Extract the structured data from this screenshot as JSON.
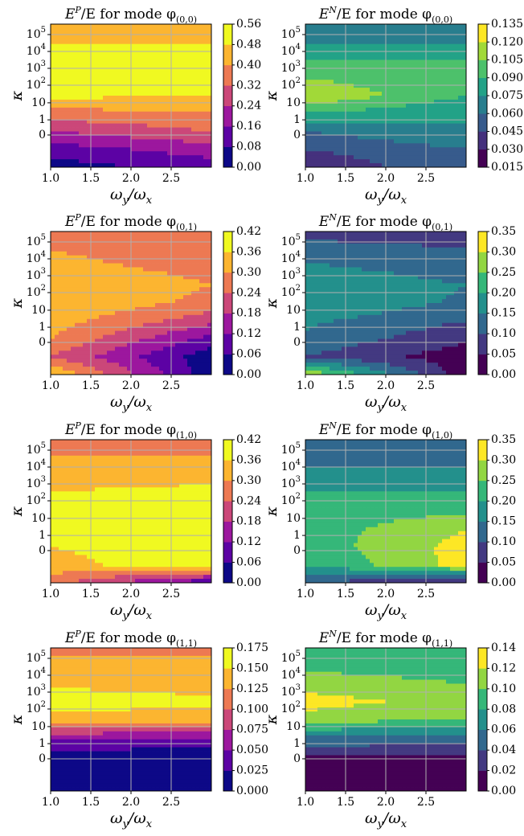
{
  "chart_data": [
    {
      "type": "heatmap",
      "title": "E^P/E for mode φ_(0,0)",
      "title_parts": {
        "quantity": "E",
        "superscript": "P",
        "middle": "/E for mode φ",
        "subscript": "(0,0)"
      },
      "xlabel": "ω_y/ω_x",
      "ylabel": "κ",
      "x_ticks": [
        "1.0",
        "1.5",
        "2.0",
        "2.5"
      ],
      "x_tick_values": [
        1.0,
        1.5,
        2.0,
        2.5
      ],
      "xlim": [
        1.0,
        3.0
      ],
      "y_ticks": [
        "0",
        "1",
        "10",
        "10^2",
        "10^3",
        "10^4",
        "10^5"
      ],
      "colormap": "plasma",
      "colorbar_ticks": [
        "0.00",
        "0.08",
        "0.16",
        "0.24",
        "0.32",
        "0.40",
        "0.48",
        "0.56"
      ],
      "colorbar_range": [
        0.0,
        0.56
      ],
      "grid": true,
      "z_profile_at_x1": [
        0.48,
        0.48,
        0.52,
        0.56,
        0.5,
        0.36,
        0.24,
        0.12,
        0.04
      ],
      "z_profile_at_x3": [
        0.48,
        0.48,
        0.48,
        0.52,
        0.48,
        0.4,
        0.32,
        0.2,
        0.12
      ]
    },
    {
      "type": "heatmap",
      "title": "E^N/E for mode φ_(0,0)",
      "title_parts": {
        "quantity": "E",
        "superscript": "N",
        "middle": "/E for mode φ",
        "subscript": "(0,0)"
      },
      "xlabel": "ω_y/ω_x",
      "ylabel": "κ",
      "x_ticks": [
        "1.0",
        "1.5",
        "2.0",
        "2.5"
      ],
      "x_tick_values": [
        1.0,
        1.5,
        2.0,
        2.5
      ],
      "xlim": [
        1.0,
        3.0
      ],
      "y_ticks": [
        "0",
        "1",
        "10",
        "10^2",
        "10^3",
        "10^4",
        "10^5"
      ],
      "colormap": "viridis",
      "colorbar_ticks": [
        "0.015",
        "0.030",
        "0.045",
        "0.060",
        "0.075",
        "0.090",
        "0.105",
        "0.120",
        "0.135"
      ],
      "colorbar_range": [
        0.015,
        0.135
      ],
      "grid": true,
      "z_profile_at_x1": [
        0.06,
        0.075,
        0.09,
        0.105,
        0.12,
        0.09,
        0.06,
        0.045,
        0.03
      ],
      "z_profile_at_x3": [
        0.075,
        0.075,
        0.09,
        0.09,
        0.09,
        0.075,
        0.075,
        0.06,
        0.06
      ]
    },
    {
      "type": "heatmap",
      "title": "E^P/E for mode φ_(0,1)",
      "title_parts": {
        "quantity": "E",
        "superscript": "P",
        "middle": "/E for mode φ",
        "subscript": "(0,1)"
      },
      "xlabel": "ω_y/ω_x",
      "ylabel": "κ",
      "x_ticks": [
        "1.0",
        "1.5",
        "2.0",
        "2.5"
      ],
      "x_tick_values": [
        1.0,
        1.5,
        2.0,
        2.5
      ],
      "xlim": [
        1.0,
        3.0
      ],
      "y_ticks": [
        "0",
        "1",
        "10",
        "10^2",
        "10^3",
        "10^4",
        "10^5"
      ],
      "colormap": "plasma",
      "colorbar_ticks": [
        "0.00",
        "0.06",
        "0.12",
        "0.18",
        "0.24",
        "0.30",
        "0.36",
        "0.42"
      ],
      "colorbar_range": [
        0.0,
        0.42
      ],
      "grid": true,
      "z_profile_at_x1": [
        0.24,
        0.3,
        0.32,
        0.36,
        0.36,
        0.33,
        0.3,
        0.24,
        0.36
      ],
      "z_profile_at_x3": [
        0.24,
        0.26,
        0.28,
        0.3,
        0.28,
        0.2,
        0.1,
        0.02,
        0.02
      ]
    },
    {
      "type": "heatmap",
      "title": "E^N/E for mode φ_(0,1)",
      "title_parts": {
        "quantity": "E",
        "superscript": "N",
        "middle": "/E for mode φ",
        "subscript": "(0,1)"
      },
      "xlabel": "ω_y/ω_x",
      "ylabel": "κ",
      "x_ticks": [
        "1.0",
        "1.5",
        "2.0",
        "2.5"
      ],
      "x_tick_values": [
        1.0,
        1.5,
        2.0,
        2.5
      ],
      "xlim": [
        1.0,
        3.0
      ],
      "y_ticks": [
        "0",
        "1",
        "10",
        "10^2",
        "10^3",
        "10^4",
        "10^5"
      ],
      "colormap": "viridis",
      "colorbar_ticks": [
        "0.00",
        "0.05",
        "0.10",
        "0.15",
        "0.20",
        "0.25",
        "0.30",
        "0.35"
      ],
      "colorbar_range": [
        0.0,
        0.35
      ],
      "grid": true,
      "z_profile_at_x1": [
        0.08,
        0.12,
        0.16,
        0.2,
        0.2,
        0.16,
        0.14,
        0.1,
        0.3
      ],
      "z_profile_at_x3": [
        0.08,
        0.1,
        0.12,
        0.15,
        0.14,
        0.1,
        0.06,
        0.02,
        0.02
      ]
    },
    {
      "type": "heatmap",
      "title": "E^P/E for mode φ_(1,0)",
      "title_parts": {
        "quantity": "E",
        "superscript": "P",
        "middle": "/E for mode φ",
        "subscript": "(1,0)"
      },
      "xlabel": "ω_y/ω_x",
      "ylabel": "κ",
      "x_ticks": [
        "1.0",
        "1.5",
        "2.0",
        "2.5"
      ],
      "x_tick_values": [
        1.0,
        1.5,
        2.0,
        2.5
      ],
      "xlim": [
        1.0,
        3.0
      ],
      "y_ticks": [
        "0",
        "1",
        "10",
        "10^2",
        "10^3",
        "10^4",
        "10^5"
      ],
      "colormap": "plasma",
      "colorbar_ticks": [
        "0.00",
        "0.06",
        "0.12",
        "0.18",
        "0.24",
        "0.30",
        "0.36",
        "0.42"
      ],
      "colorbar_range": [
        0.0,
        0.42
      ],
      "grid": true,
      "z_profile_at_x1": [
        0.28,
        0.3,
        0.34,
        0.36,
        0.36,
        0.36,
        0.36,
        0.34,
        0.26
      ],
      "z_profile_at_x3": [
        0.28,
        0.3,
        0.34,
        0.38,
        0.4,
        0.4,
        0.4,
        0.4,
        0.06
      ]
    },
    {
      "type": "heatmap",
      "title": "E^N/E for mode φ_(1,0)",
      "title_parts": {
        "quantity": "E",
        "superscript": "N",
        "middle": "/E for mode φ",
        "subscript": "(1,0)"
      },
      "xlabel": "ω_y/ω_x",
      "ylabel": "κ",
      "x_ticks": [
        "1.0",
        "1.5",
        "2.0",
        "2.5"
      ],
      "x_tick_values": [
        1.0,
        1.5,
        2.0,
        2.5
      ],
      "xlim": [
        1.0,
        3.0
      ],
      "y_ticks": [
        "0",
        "1",
        "10",
        "10^2",
        "10^3",
        "10^4",
        "10^5"
      ],
      "colormap": "viridis",
      "colorbar_ticks": [
        "0.00",
        "0.05",
        "0.10",
        "0.15",
        "0.20",
        "0.25",
        "0.30",
        "0.35"
      ],
      "colorbar_range": [
        0.0,
        0.35
      ],
      "grid": true,
      "z_profile_at_x1": [
        0.12,
        0.14,
        0.16,
        0.2,
        0.22,
        0.22,
        0.22,
        0.2,
        0.1
      ],
      "z_profile_at_x3": [
        0.12,
        0.14,
        0.16,
        0.2,
        0.24,
        0.3,
        0.32,
        0.32,
        0.04
      ]
    },
    {
      "type": "heatmap",
      "title": "E^P/E for mode φ_(1,1)",
      "title_parts": {
        "quantity": "E",
        "superscript": "P",
        "middle": "/E for mode φ",
        "subscript": "(1,1)"
      },
      "xlabel": "ω_y/ω_x",
      "ylabel": "κ",
      "x_ticks": [
        "1.0",
        "1.5",
        "2.0",
        "2.5"
      ],
      "x_tick_values": [
        1.0,
        1.5,
        2.0,
        2.5
      ],
      "xlim": [
        1.0,
        3.0
      ],
      "y_ticks": [
        "0",
        "1",
        "10",
        "10^2",
        "10^3",
        "10^4",
        "10^5"
      ],
      "colormap": "plasma",
      "colorbar_ticks": [
        "0.000",
        "0.025",
        "0.050",
        "0.075",
        "0.100",
        "0.125",
        "0.150",
        "0.175"
      ],
      "colorbar_range": [
        0.0,
        0.175
      ],
      "grid": true,
      "z_profile_at_x1": [
        0.12,
        0.13,
        0.145,
        0.165,
        0.14,
        0.06,
        0.01,
        0.005,
        0.005
      ],
      "z_profile_at_x3": [
        0.12,
        0.13,
        0.14,
        0.155,
        0.135,
        0.05,
        0.01,
        0.005,
        0.005
      ]
    },
    {
      "type": "heatmap",
      "title": "E^N/E for mode φ_(1,1)",
      "title_parts": {
        "quantity": "E",
        "superscript": "N",
        "middle": "/E for mode φ",
        "subscript": "(1,1)"
      },
      "xlabel": "ω_y/ω_x",
      "ylabel": "κ",
      "x_ticks": [
        "1.0",
        "1.5",
        "2.0",
        "2.5"
      ],
      "x_tick_values": [
        1.0,
        1.5,
        2.0,
        2.5
      ],
      "xlim": [
        1.0,
        3.0
      ],
      "y_ticks": [
        "0",
        "1",
        "10",
        "10^2",
        "10^3",
        "10^4",
        "10^5"
      ],
      "colormap": "viridis",
      "colorbar_ticks": [
        "0.00",
        "0.02",
        "0.04",
        "0.06",
        "0.08",
        "0.10",
        "0.12",
        "0.14"
      ],
      "colorbar_range": [
        0.0,
        0.14
      ],
      "grid": true,
      "z_profile_at_x1": [
        0.08,
        0.095,
        0.11,
        0.13,
        0.11,
        0.06,
        0.02,
        0.01,
        0.01
      ],
      "z_profile_at_x3": [
        0.08,
        0.09,
        0.1,
        0.11,
        0.1,
        0.05,
        0.02,
        0.01,
        0.01
      ]
    }
  ]
}
